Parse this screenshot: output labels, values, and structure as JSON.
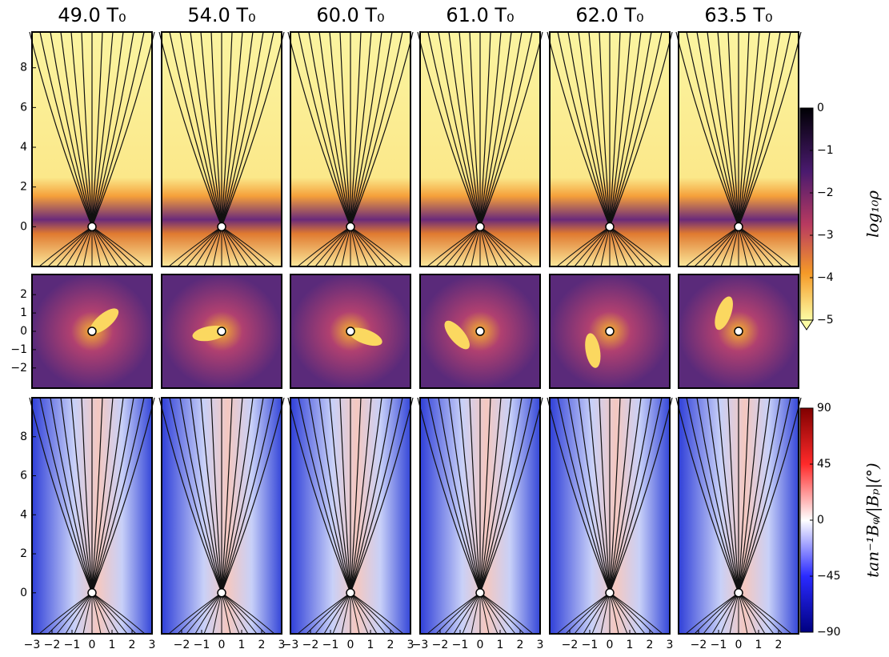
{
  "columns": [
    {
      "title": "49.0 T₀",
      "xticks": [
        {
          "value": -3,
          "label": "−3"
        },
        {
          "value": -2,
          "label": "−2"
        },
        {
          "value": -1,
          "label": "−1"
        },
        0,
        1,
        2,
        3
      ]
    },
    {
      "title": "54.0 T₀",
      "xticks": [
        {
          "value": -2,
          "label": "−2"
        },
        {
          "value": -1,
          "label": "−1"
        },
        0,
        1,
        2,
        3
      ]
    },
    {
      "title": "60.0 T₀",
      "xticks": [
        {
          "value": -3,
          "label": "−3"
        },
        {
          "value": -2,
          "label": "−2"
        },
        {
          "value": -1,
          "label": "−1"
        },
        0,
        1,
        2,
        3
      ]
    },
    {
      "title": "61.0 T₀",
      "xticks": [
        {
          "value": -3,
          "label": "−3"
        },
        {
          "value": -2,
          "label": "−2"
        },
        {
          "value": -1,
          "label": "−1"
        },
        0,
        1,
        2,
        3
      ]
    },
    {
      "title": "62.0 T₀",
      "xticks": [
        {
          "value": -2,
          "label": "−2"
        },
        {
          "value": -1,
          "label": "−1"
        },
        0,
        1,
        2,
        3
      ]
    },
    {
      "title": "63.5 T₀",
      "xticks": [
        {
          "value": -2,
          "label": "−2"
        },
        {
          "value": -1,
          "label": "−1"
        },
        0,
        1,
        2
      ]
    }
  ],
  "xlim": [
    -3,
    3
  ],
  "rows": [
    {
      "ylim": [
        -2,
        9.8
      ],
      "yticks": [
        0,
        2,
        4,
        6,
        8
      ]
    },
    {
      "ylim": [
        -3.1,
        3.1
      ],
      "yticks": [
        {
          "value": -2,
          "label": "−2"
        },
        {
          "value": -1,
          "label": "−1"
        },
        0,
        1,
        2
      ]
    },
    {
      "ylim": [
        -2.1,
        10
      ],
      "yticks": [
        0,
        2,
        4,
        6,
        8
      ]
    }
  ],
  "colorbars": [
    {
      "label": "log₁₀ρ",
      "lim": [
        -5,
        0
      ],
      "ticks": [
        0,
        {
          "value": -1,
          "label": "−1"
        },
        {
          "value": -2,
          "label": "−2"
        },
        {
          "value": -3,
          "label": "−3"
        },
        {
          "value": -4,
          "label": "−4"
        },
        {
          "value": -5,
          "label": "−5"
        }
      ]
    },
    {
      "label": "tan⁻¹Bᵩ/|Bₚ|(°)",
      "lim": [
        -90,
        90
      ],
      "ticks": [
        90,
        45,
        0,
        {
          "value": -45,
          "label": "−45"
        },
        {
          "value": -90,
          "label": "−90"
        }
      ]
    }
  ]
}
